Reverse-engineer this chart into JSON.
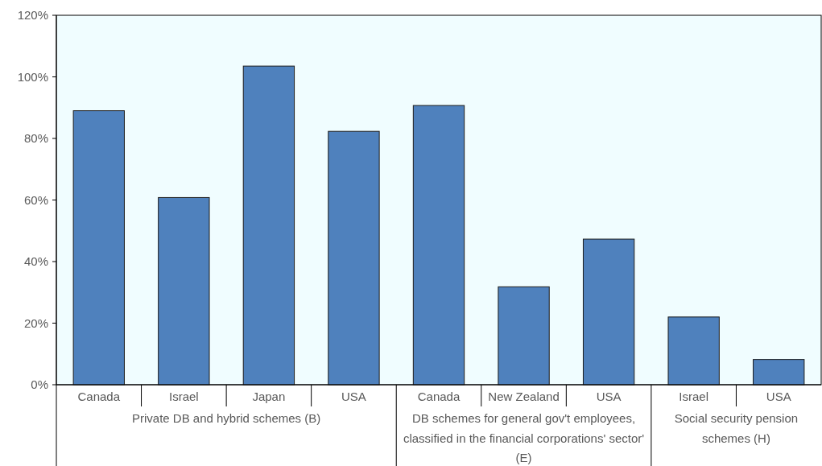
{
  "chart_data": {
    "type": "bar",
    "categories": [
      "Canada",
      "Israel",
      "Japan",
      "USA",
      "Canada",
      "New Zealand",
      "USA",
      "Israel",
      "USA"
    ],
    "values": [
      89,
      60.8,
      103.5,
      82.3,
      90.7,
      31.8,
      47.3,
      22,
      8.2
    ],
    "color": "#4f81bd",
    "ylim": [
      0,
      120
    ],
    "yticks": [
      {
        "value": 0,
        "label": "0%"
      },
      {
        "value": 20,
        "label": "20%"
      },
      {
        "value": 40,
        "label": "40%"
      },
      {
        "value": 60,
        "label": "60%"
      },
      {
        "value": 80,
        "label": "80%"
      },
      {
        "value": 100,
        "label": "100%"
      },
      {
        "value": 120,
        "label": "120%"
      }
    ],
    "annotations": [
      "Private DB and hybrid schemes (B)",
      "DB schemes for general gov't employees, classified in the financial corporations' sector' (E)",
      "Social security pension schemes (H)"
    ],
    "grid": false
  }
}
